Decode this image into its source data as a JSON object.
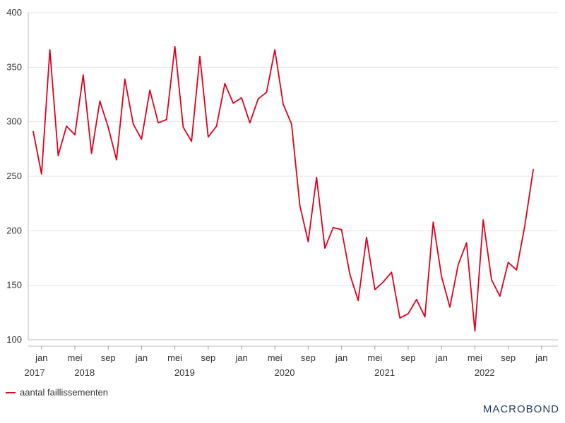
{
  "chart_data": {
    "type": "line",
    "title": "",
    "xlabel": "",
    "ylabel": "",
    "ylim": [
      100,
      400
    ],
    "y_ticks": [
      100,
      150,
      200,
      250,
      300,
      350,
      400
    ],
    "grid": "horizontal",
    "legend_position": "bottom-left",
    "x_start": "2017-12",
    "x_tick_labels": [
      {
        "month": "2018-01",
        "label": "jan"
      },
      {
        "month": "2018-05",
        "label": "mei"
      },
      {
        "month": "2018-09",
        "label": "sep"
      },
      {
        "month": "2019-01",
        "label": "jan"
      },
      {
        "month": "2019-05",
        "label": "mei"
      },
      {
        "month": "2019-09",
        "label": "sep"
      },
      {
        "month": "2020-01",
        "label": "jan"
      },
      {
        "month": "2020-05",
        "label": "mei"
      },
      {
        "month": "2020-09",
        "label": "sep"
      },
      {
        "month": "2021-01",
        "label": "jan"
      },
      {
        "month": "2021-05",
        "label": "mei"
      },
      {
        "month": "2021-09",
        "label": "sep"
      },
      {
        "month": "2022-01",
        "label": "jan"
      },
      {
        "month": "2022-05",
        "label": "mei"
      },
      {
        "month": "2022-09",
        "label": "sep"
      },
      {
        "month": "2023-01",
        "label": "jan"
      }
    ],
    "x_year_labels": [
      {
        "month": "2017-12",
        "label": "2017"
      },
      {
        "month": "2018-06",
        "label": "2018"
      },
      {
        "month": "2019-06",
        "label": "2019"
      },
      {
        "month": "2020-06",
        "label": "2020"
      },
      {
        "month": "2021-06",
        "label": "2021"
      },
      {
        "month": "2022-06",
        "label": "2022"
      }
    ],
    "series": [
      {
        "name": "aantal faillissementen",
        "color": "#e0001b",
        "values": [
          291,
          252,
          366,
          269,
          296,
          288,
          343,
          271,
          319,
          295,
          265,
          339,
          298,
          284,
          329,
          299,
          302,
          369,
          295,
          282,
          360,
          286,
          296,
          335,
          317,
          322,
          299,
          321,
          327,
          366,
          316,
          298,
          223,
          190,
          249,
          184,
          203,
          201,
          160,
          136,
          194,
          146,
          153,
          162,
          120,
          124,
          137,
          121,
          208,
          158,
          130,
          169,
          189,
          108,
          210,
          155,
          140,
          171,
          164,
          205,
          256
        ]
      }
    ]
  },
  "legend": {
    "label": "aantal faillissementen"
  },
  "brand": {
    "text": "MACROBOND"
  }
}
